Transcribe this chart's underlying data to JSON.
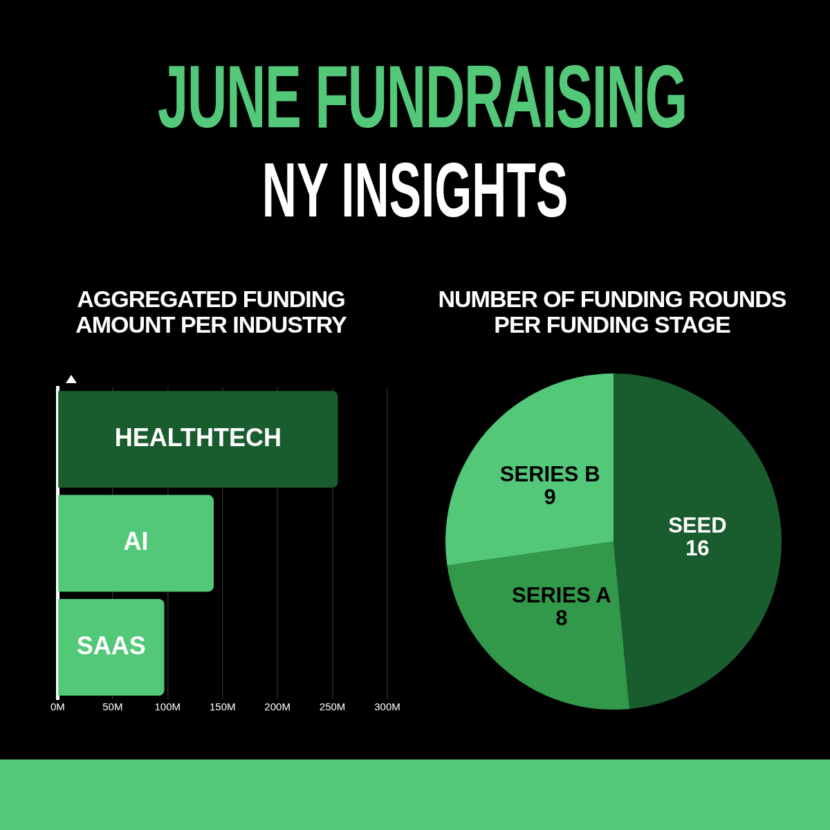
{
  "chart_data": [
    {
      "type": "other",
      "title": "JUNE FUNDRAISING",
      "subtitle": "NY INSIGHTS"
    },
    {
      "type": "bar",
      "orientation": "horizontal",
      "title": "AGGREGATED FUNDING AMOUNT PER INDUSTRY",
      "categories": [
        "HEALTHTECH",
        "AI",
        "SAAS"
      ],
      "values": [
        255,
        142,
        97
      ],
      "colors": [
        "#195c2e",
        "#52c878",
        "#52c878"
      ],
      "xlim": [
        0,
        300
      ],
      "xticks": [
        {
          "value": 0,
          "label": "0M"
        },
        {
          "value": 50,
          "label": "50M"
        },
        {
          "value": 100,
          "label": "100M"
        },
        {
          "value": 150,
          "label": "150M"
        },
        {
          "value": 200,
          "label": "200M"
        },
        {
          "value": 250,
          "label": "250M"
        },
        {
          "value": 300,
          "label": "300M"
        }
      ],
      "grid": "x",
      "legend": false
    },
    {
      "type": "pie",
      "title": "NUMBER OF FUNDING ROUNDS PER FUNDING STAGE",
      "categories": [
        "SEED",
        "SERIES A",
        "SERIES B"
      ],
      "values": [
        16,
        8,
        9
      ],
      "colors": [
        "#195c2e",
        "#33994a",
        "#52c878"
      ],
      "data_labels": true,
      "legend": false
    }
  ]
}
